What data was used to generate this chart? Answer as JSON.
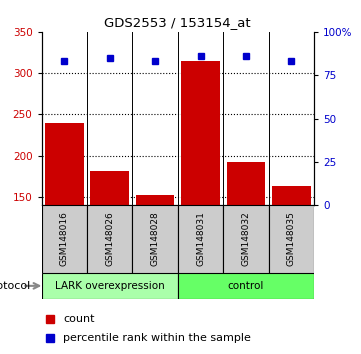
{
  "title": "GDS2553 / 153154_at",
  "samples": [
    "GSM148016",
    "GSM148026",
    "GSM148028",
    "GSM148031",
    "GSM148032",
    "GSM148035"
  ],
  "counts": [
    240,
    182,
    152,
    315,
    193,
    163
  ],
  "percentile_ranks_pct": [
    83,
    85,
    83,
    86,
    86,
    83
  ],
  "ylim_left": [
    140,
    350
  ],
  "ylim_right": [
    0,
    100
  ],
  "yticks_left": [
    150,
    200,
    250,
    300,
    350
  ],
  "yticks_right": [
    0,
    25,
    50,
    75,
    100
  ],
  "ytick_labels_right": [
    "0",
    "25",
    "50",
    "75",
    "100%"
  ],
  "bar_color": "#cc0000",
  "marker_color": "#0000cc",
  "group1_label": "LARK overexpression",
  "group2_label": "control",
  "group1_color": "#aaffaa",
  "group2_color": "#66ff66",
  "label_box_color": "#cccccc",
  "protocol_label": "protocol",
  "legend_count_label": "count",
  "legend_percentile_label": "percentile rank within the sample",
  "bar_width": 0.85,
  "grid_linestyle": "dotted",
  "grid_linewidth": 0.8
}
